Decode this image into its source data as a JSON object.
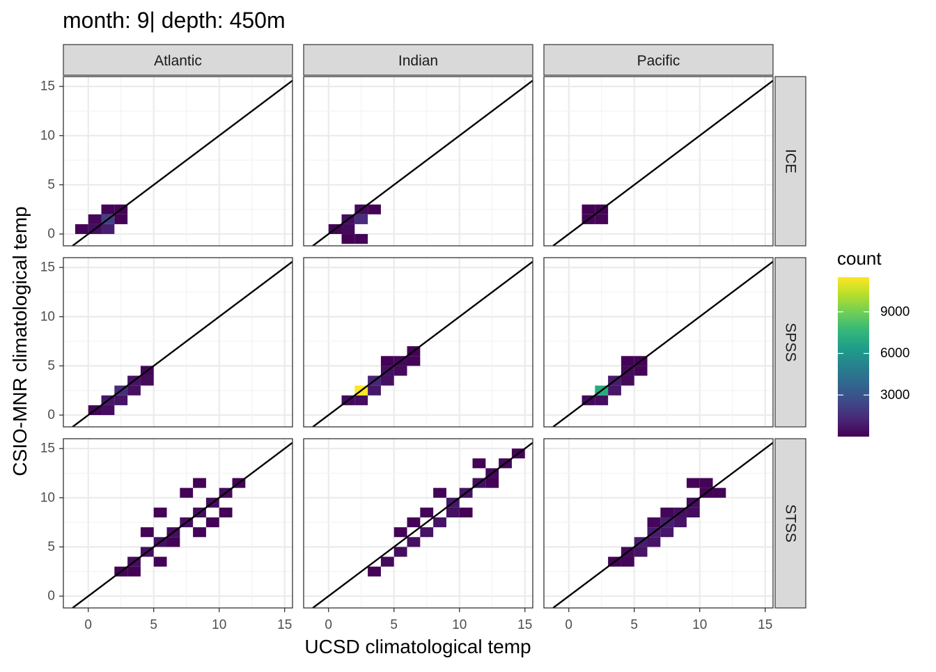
{
  "chart_data": {
    "type": "heatmap",
    "title": "month: 9| depth: 450m",
    "xlabel": "UCSD climatological temp",
    "ylabel": "CSIO-MNR climatological temp",
    "xlim": [
      -1.9,
      15.6
    ],
    "ylim": [
      -1.2,
      16.0
    ],
    "x_ticks": [
      0,
      5,
      10,
      15
    ],
    "y_ticks": [
      0,
      5,
      10,
      15
    ],
    "tick_labels": {
      "x": [
        "0",
        "5",
        "10",
        "15"
      ],
      "y": [
        "0",
        "5",
        "10",
        "15"
      ]
    },
    "grid": true,
    "bin_width": 1.0,
    "identity_line": {
      "slope": 1,
      "intercept": 0
    },
    "facet_columns": [
      "Atlantic",
      "Indian",
      "Pacific"
    ],
    "facet_rows": [
      "ICE",
      "SPSS",
      "STSS"
    ],
    "legend": {
      "title": "count",
      "position": "right",
      "breaks": [
        3000,
        6000,
        9000
      ],
      "break_labels": [
        "3000",
        "6000",
        "9000"
      ],
      "range": [
        1,
        11500
      ],
      "colors": [
        "#440154",
        "#482878",
        "#3e4a89",
        "#31688e",
        "#26828e",
        "#1f9e89",
        "#35b779",
        "#6ece58",
        "#b5de2b",
        "#fde725"
      ]
    },
    "panels": [
      {
        "column": "Atlantic",
        "row": "ICE",
        "cells": [
          [
            -1,
            0,
            60
          ],
          [
            0,
            0,
            400
          ],
          [
            1,
            0,
            1000
          ],
          [
            0,
            1,
            200
          ],
          [
            1,
            1,
            2200
          ],
          [
            2,
            1,
            80
          ],
          [
            1,
            2,
            90
          ],
          [
            2,
            2,
            60
          ]
        ]
      },
      {
        "column": "Pacific",
        "row": "ICE",
        "cells": [
          [
            1,
            1,
            90
          ],
          [
            2,
            1,
            120
          ],
          [
            1,
            2,
            50
          ],
          [
            2,
            2,
            60
          ]
        ]
      },
      {
        "column": "Indian",
        "row": "ICE",
        "cells": [
          [
            0,
            0,
            60
          ],
          [
            1,
            0,
            300
          ],
          [
            1,
            -1,
            50
          ],
          [
            1,
            1,
            400
          ],
          [
            2,
            1,
            1500
          ],
          [
            2,
            2,
            300
          ],
          [
            3,
            2,
            70
          ],
          [
            2,
            -1,
            80
          ]
        ]
      },
      {
        "column": "Atlantic",
        "row": "SPSS",
        "cells": [
          [
            0,
            0,
            150
          ],
          [
            1,
            0,
            400
          ],
          [
            1,
            1,
            700
          ],
          [
            2,
            1,
            600
          ],
          [
            2,
            2,
            1500
          ],
          [
            3,
            2,
            500
          ],
          [
            3,
            3,
            600
          ],
          [
            4,
            3,
            300
          ],
          [
            4,
            4,
            150
          ]
        ]
      },
      {
        "column": "Indian",
        "row": "SPSS",
        "cells": [
          [
            1,
            1,
            300
          ],
          [
            2,
            1,
            400
          ],
          [
            2,
            2,
            11500
          ],
          [
            3,
            2,
            700
          ],
          [
            3,
            3,
            1200
          ],
          [
            4,
            3,
            500
          ],
          [
            4,
            4,
            500
          ],
          [
            5,
            4,
            300
          ],
          [
            5,
            5,
            200
          ],
          [
            6,
            5,
            100
          ],
          [
            6,
            6,
            80
          ],
          [
            4,
            5,
            80
          ]
        ]
      },
      {
        "column": "Pacific",
        "row": "SPSS",
        "cells": [
          [
            1,
            1,
            300
          ],
          [
            2,
            1,
            400
          ],
          [
            2,
            2,
            7000
          ],
          [
            3,
            2,
            700
          ],
          [
            3,
            3,
            900
          ],
          [
            4,
            3,
            300
          ],
          [
            4,
            4,
            300
          ],
          [
            5,
            4,
            120
          ],
          [
            5,
            5,
            100
          ],
          [
            4,
            5,
            60
          ]
        ]
      },
      {
        "column": "Atlantic",
        "row": "STSS",
        "cells": [
          [
            2,
            2,
            50
          ],
          [
            3,
            3,
            400
          ],
          [
            4,
            4,
            500
          ],
          [
            5,
            5,
            500
          ],
          [
            6,
            6,
            400
          ],
          [
            7,
            7,
            400
          ],
          [
            8,
            8,
            400
          ],
          [
            9,
            9,
            400
          ],
          [
            10,
            10,
            300
          ],
          [
            11,
            11,
            80
          ],
          [
            3,
            2,
            50
          ],
          [
            5,
            3,
            60
          ],
          [
            6,
            5,
            80
          ],
          [
            8,
            6,
            60
          ],
          [
            9,
            7,
            60
          ],
          [
            7,
            10,
            60
          ],
          [
            5,
            8,
            80
          ],
          [
            4,
            6,
            60
          ],
          [
            10,
            8,
            80
          ],
          [
            8,
            11,
            80
          ]
        ]
      },
      {
        "column": "Indian",
        "row": "STSS",
        "cells": [
          [
            3,
            2,
            60
          ],
          [
            4,
            3,
            300
          ],
          [
            5,
            4,
            400
          ],
          [
            6,
            5,
            500
          ],
          [
            7,
            6,
            600
          ],
          [
            8,
            7,
            600
          ],
          [
            9,
            8,
            500
          ],
          [
            9,
            9,
            800
          ],
          [
            10,
            10,
            600
          ],
          [
            11,
            11,
            500
          ],
          [
            12,
            12,
            300
          ],
          [
            13,
            13,
            200
          ],
          [
            14,
            14,
            100
          ],
          [
            6,
            7,
            80
          ],
          [
            8,
            10,
            80
          ],
          [
            10,
            8,
            80
          ],
          [
            12,
            11,
            80
          ],
          [
            11,
            13,
            60
          ],
          [
            7,
            8,
            100
          ],
          [
            5,
            6,
            60
          ]
        ]
      },
      {
        "column": "Pacific",
        "row": "STSS",
        "cells": [
          [
            3,
            3,
            60
          ],
          [
            4,
            3,
            150
          ],
          [
            4,
            4,
            300
          ],
          [
            5,
            4,
            600
          ],
          [
            5,
            5,
            900
          ],
          [
            6,
            5,
            600
          ],
          [
            6,
            6,
            900
          ],
          [
            7,
            6,
            700
          ],
          [
            7,
            7,
            1000
          ],
          [
            8,
            7,
            600
          ],
          [
            8,
            8,
            500
          ],
          [
            9,
            8,
            400
          ],
          [
            9,
            9,
            350
          ],
          [
            10,
            10,
            120
          ],
          [
            11,
            10,
            80
          ],
          [
            10,
            11,
            60
          ],
          [
            9,
            11,
            60
          ],
          [
            6,
            7,
            200
          ],
          [
            7,
            8,
            150
          ]
        ]
      }
    ]
  }
}
